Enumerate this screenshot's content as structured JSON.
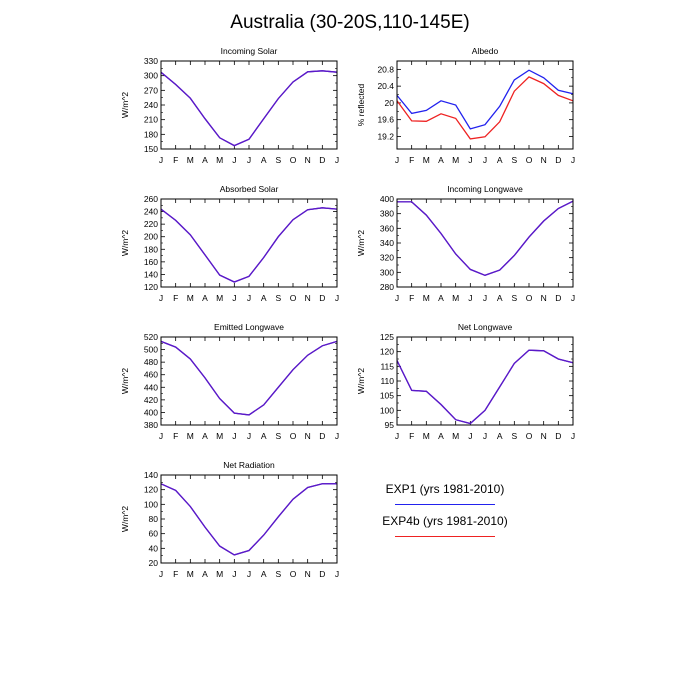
{
  "title": "Australia (30-20S,110-145E)",
  "colors": {
    "exp1": "#2222ee",
    "exp4b": "#ee2222",
    "overlap": "#5a1ac8"
  },
  "legend": {
    "exp1": {
      "label": "EXP1 (yrs 1981-2010)",
      "color": "#2222ee"
    },
    "exp4b": {
      "label": "EXP4b (yrs 1981-2010)",
      "color": "#ee2222"
    }
  },
  "chart_data": [
    {
      "type": "line",
      "title": "Incoming Solar",
      "ylabel": "W/m^2",
      "categories": [
        "J",
        "F",
        "M",
        "A",
        "M",
        "J",
        "J",
        "A",
        "S",
        "O",
        "N",
        "D",
        "J"
      ],
      "ylim": [
        150,
        330
      ],
      "yticks": [
        150,
        180,
        210,
        240,
        270,
        300,
        330
      ],
      "series": [
        {
          "name": "EXP1 (yrs 1981-2010)",
          "values": [
            307,
            282,
            254,
            212,
            173,
            157,
            170,
            212,
            253,
            287,
            308,
            310,
            307
          ]
        },
        {
          "name": "EXP4b (yrs 1981-2010)",
          "values": [
            307,
            282,
            254,
            212,
            173,
            157,
            170,
            212,
            253,
            287,
            308,
            310,
            307
          ]
        }
      ]
    },
    {
      "type": "line",
      "title": "Albedo",
      "ylabel": "% reflected",
      "categories": [
        "J",
        "F",
        "M",
        "A",
        "M",
        "J",
        "J",
        "A",
        "S",
        "O",
        "N",
        "D",
        "J"
      ],
      "ylim": [
        18.9,
        21.0
      ],
      "yticks": [
        19.2,
        19.6,
        20.0,
        20.4,
        20.8
      ],
      "series": [
        {
          "name": "EXP1 (yrs 1981-2010)",
          "values": [
            20.18,
            19.75,
            19.82,
            20.05,
            19.95,
            19.38,
            19.48,
            19.92,
            20.55,
            20.78,
            20.6,
            20.3,
            20.22
          ]
        },
        {
          "name": "EXP4b (yrs 1981-2010)",
          "values": [
            20.05,
            19.57,
            19.56,
            19.74,
            19.63,
            19.14,
            19.19,
            19.55,
            20.28,
            20.62,
            20.46,
            20.18,
            20.05
          ]
        }
      ]
    },
    {
      "type": "line",
      "title": "Absorbed Solar",
      "ylabel": "W/m^2",
      "categories": [
        "J",
        "F",
        "M",
        "A",
        "M",
        "J",
        "J",
        "A",
        "S",
        "O",
        "N",
        "D",
        "J"
      ],
      "ylim": [
        120,
        260
      ],
      "yticks": [
        120,
        140,
        160,
        180,
        200,
        220,
        240,
        260
      ],
      "series": [
        {
          "name": "EXP1 (yrs 1981-2010)",
          "values": [
            244,
            226,
            203,
            171,
            139,
            128,
            137,
            167,
            200,
            227,
            243,
            246,
            244
          ]
        },
        {
          "name": "EXP4b (yrs 1981-2010)",
          "values": [
            244,
            226,
            203,
            171,
            139,
            128,
            137,
            167,
            200,
            227,
            243,
            246,
            244
          ]
        }
      ]
    },
    {
      "type": "line",
      "title": "Incoming Longwave",
      "ylabel": "W/m^2",
      "categories": [
        "J",
        "F",
        "M",
        "A",
        "M",
        "J",
        "J",
        "A",
        "S",
        "O",
        "N",
        "D",
        "J"
      ],
      "ylim": [
        280,
        400
      ],
      "yticks": [
        280,
        300,
        320,
        340,
        360,
        380,
        400
      ],
      "series": [
        {
          "name": "EXP1 (yrs 1981-2010)",
          "values": [
            396,
            396,
            378,
            353,
            325,
            304,
            296,
            303,
            323,
            348,
            370,
            387,
            397
          ]
        },
        {
          "name": "EXP4b (yrs 1981-2010)",
          "values": [
            396,
            396,
            378,
            353,
            325,
            304,
            296,
            303,
            323,
            348,
            370,
            387,
            397
          ]
        }
      ]
    },
    {
      "type": "line",
      "title": "Emitted Longwave",
      "ylabel": "W/m^2",
      "categories": [
        "J",
        "F",
        "M",
        "A",
        "M",
        "J",
        "J",
        "A",
        "S",
        "O",
        "N",
        "D",
        "J"
      ],
      "ylim": [
        380,
        520
      ],
      "yticks": [
        380,
        400,
        420,
        440,
        460,
        480,
        500,
        520
      ],
      "series": [
        {
          "name": "EXP1 (yrs 1981-2010)",
          "values": [
            513,
            504,
            485,
            455,
            422,
            399,
            396,
            412,
            440,
            468,
            491,
            506,
            513
          ]
        },
        {
          "name": "EXP4b (yrs 1981-2010)",
          "values": [
            513,
            504,
            485,
            455,
            422,
            399,
            396,
            412,
            440,
            468,
            491,
            506,
            513
          ]
        }
      ]
    },
    {
      "type": "line",
      "title": "Net Longwave",
      "ylabel": "W/m^2",
      "categories": [
        "J",
        "F",
        "M",
        "A",
        "M",
        "J",
        "J",
        "A",
        "S",
        "O",
        "N",
        "D",
        "J"
      ],
      "ylim": [
        95,
        125
      ],
      "yticks": [
        95,
        100,
        105,
        110,
        115,
        120,
        125
      ],
      "series": [
        {
          "name": "EXP1 (yrs 1981-2010)",
          "values": [
            117,
            106.8,
            106.5,
            102,
            96.8,
            95.5,
            100,
            108,
            116,
            120.5,
            120.3,
            117.5,
            116.2
          ]
        },
        {
          "name": "EXP4b (yrs 1981-2010)",
          "values": [
            117,
            106.8,
            106.5,
            102,
            96.8,
            95.5,
            100,
            108,
            116,
            120.5,
            120.3,
            117.5,
            116.2
          ]
        }
      ]
    },
    {
      "type": "line",
      "title": "Net Radiation",
      "ylabel": "W/m^2",
      "categories": [
        "J",
        "F",
        "M",
        "A",
        "M",
        "J",
        "J",
        "A",
        "S",
        "O",
        "N",
        "D",
        "J"
      ],
      "ylim": [
        20,
        140
      ],
      "yticks": [
        20,
        40,
        60,
        80,
        100,
        120,
        140
      ],
      "series": [
        {
          "name": "EXP1 (yrs 1981-2010)",
          "values": [
            128,
            119,
            97,
            69,
            43,
            31,
            37,
            58,
            83,
            107,
            123,
            128,
            128
          ]
        },
        {
          "name": "EXP4b (yrs 1981-2010)",
          "values": [
            128,
            119,
            97,
            69,
            43,
            31,
            37,
            58,
            83,
            107,
            123,
            128,
            128
          ]
        }
      ]
    }
  ]
}
